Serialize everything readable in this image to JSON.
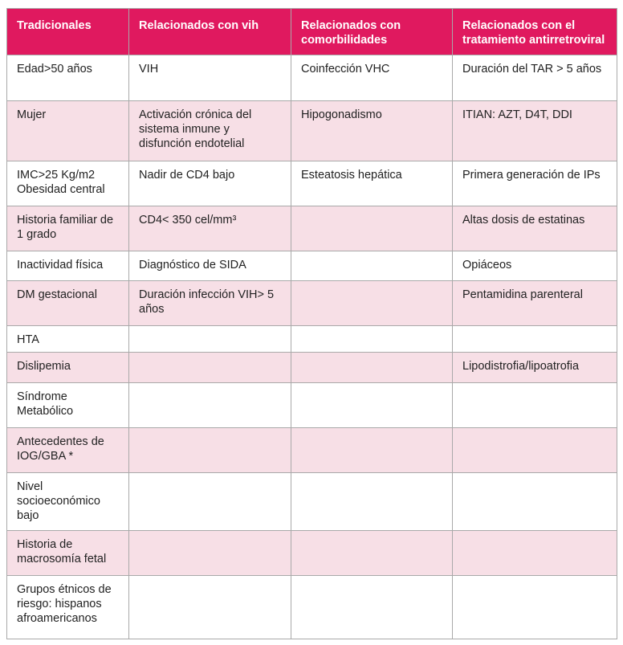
{
  "table": {
    "header": [
      "Tradicionales",
      "Relacionados con vih",
      "Relacionados con comorbilidades",
      "Relacionados con el tratamiento antirretroviral"
    ],
    "rows": [
      [
        "Edad>50 años",
        "VIH",
        "Coinfección VHC",
        "Duración del TAR > 5 años"
      ],
      [
        "Mujer",
        "Activación crónica del sistema inmune y disfunción endotelial",
        "Hipogonadismo",
        "ITIAN: AZT, D4T, DDI"
      ],
      [
        "IMC>25 Kg/m2 Obesidad central",
        "Nadir de CD4 bajo",
        "Esteatosis hepática",
        "Primera generación de IPs"
      ],
      [
        "Historia familiar de 1 grado",
        "CD4< 350 cel/mm³",
        null,
        "Altas dosis de estatinas"
      ],
      [
        "Inactividad física",
        "Diagnóstico de SIDA",
        null,
        "Opiáceos"
      ],
      [
        "DM gestacional",
        "Duración infección VIH> 5 años",
        null,
        "Pentamidina parenteral"
      ],
      [
        "HTA",
        null,
        null,
        null
      ],
      [
        "Dislipemia",
        null,
        null,
        "Lipodistrofia/lipoatrofia"
      ],
      [
        "Síndrome Metabólico",
        null,
        null,
        null
      ],
      [
        "Antecedentes de IOG/GBA *",
        null,
        null,
        null
      ],
      [
        "Nivel socioeconómico bajo",
        null,
        null,
        null
      ],
      [
        "Historia de macrosomía fetal",
        null,
        null,
        null
      ],
      [
        "Grupos étnicos de riesgo: hispanos afroamericanos",
        null,
        null,
        null
      ]
    ]
  }
}
